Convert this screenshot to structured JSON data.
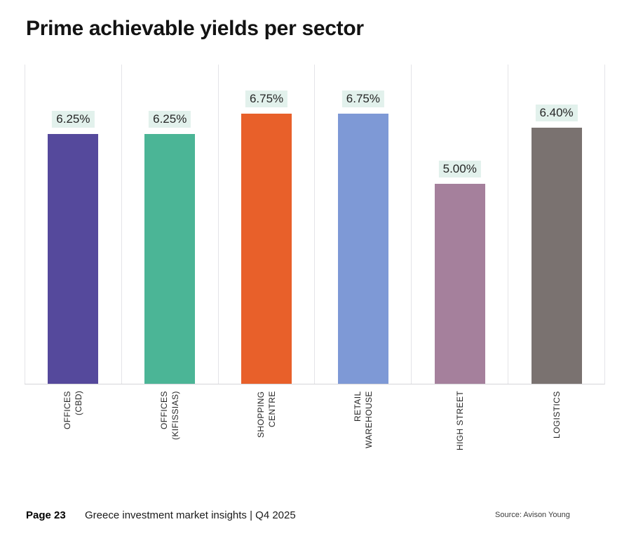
{
  "chart_data": {
    "type": "bar",
    "title": "Prime achievable yields per sector",
    "categories": [
      "OFFICES\n(CBD)",
      "OFFICES\n(KIFISSIAS)",
      "SHOPPING\nCENTRE",
      "RETAIL\nWAREHOUSE",
      "HIGH STREET",
      "LOGISTICS"
    ],
    "values": [
      6.25,
      6.25,
      6.75,
      6.75,
      5.0,
      6.4
    ],
    "value_labels": [
      "6.25%",
      "6.25%",
      "6.75%",
      "6.75%",
      "5.00%",
      "6.40%"
    ],
    "bar_colors": [
      "#55499c",
      "#4bb596",
      "#e8602a",
      "#7e99d6",
      "#a5809c",
      "#7a7270"
    ],
    "value_label_bg": "#e2f1ec",
    "xlabel": "",
    "ylabel": "",
    "ylim": [
      0,
      8
    ],
    "grid": "vertical category separators only",
    "legend": "none"
  },
  "footer": {
    "page_label": "Page 23",
    "report_title": "Greece investment market insights | Q4 2025",
    "source": "Source: Avison Young"
  }
}
